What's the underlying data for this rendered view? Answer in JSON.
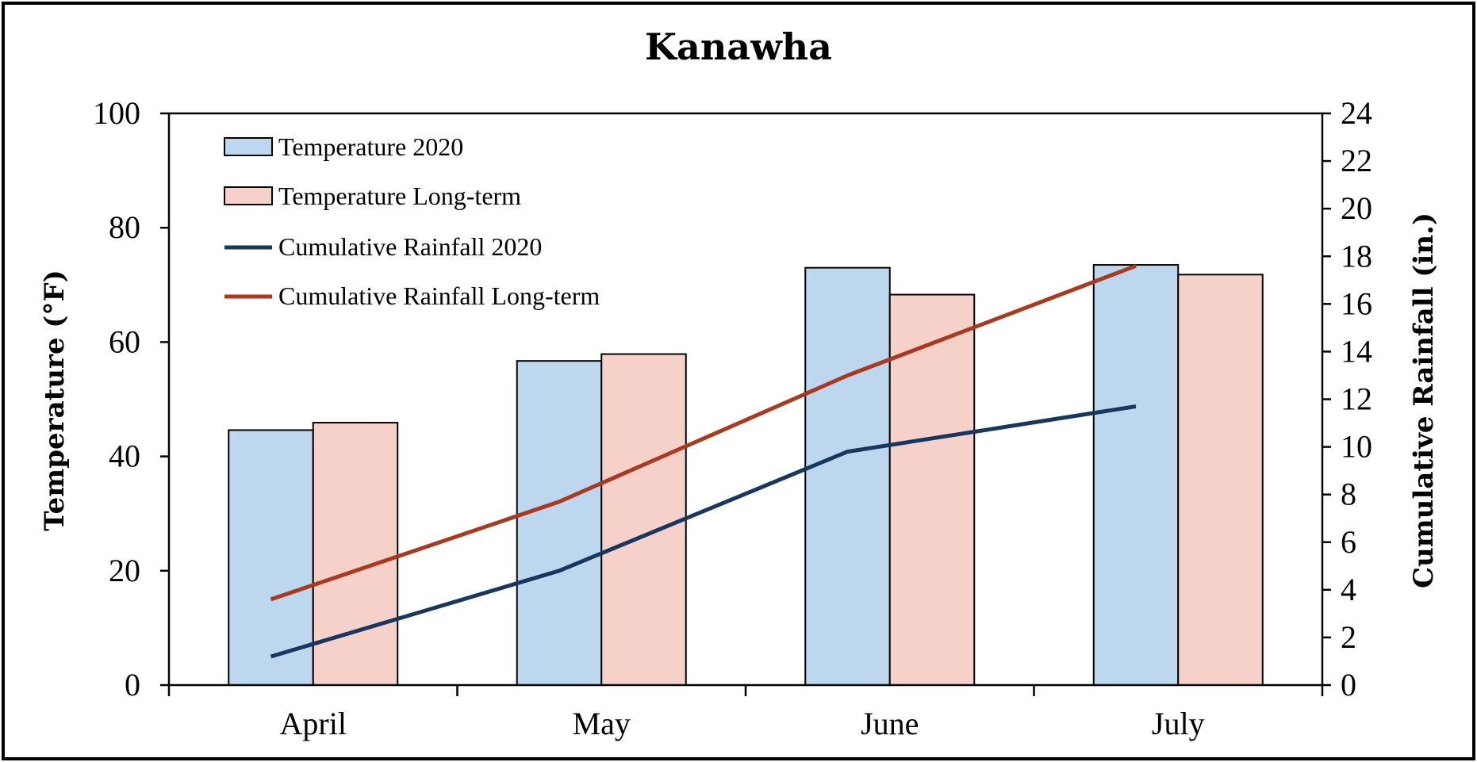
{
  "chart_data": {
    "type": "bar",
    "title": "Kanawha",
    "categories": [
      "April",
      "May",
      "June",
      "July"
    ],
    "xlabel": "",
    "ylabel": "Temperature (°F)",
    "ylim": [
      0,
      100
    ],
    "yticks": [
      "0",
      "20",
      "40",
      "60",
      "80",
      "100"
    ],
    "y2label": "Cumulative Rainfall (in.)",
    "y2lim": [
      0,
      24
    ],
    "y2ticks": [
      "0",
      "2",
      "4",
      "6",
      "8",
      "10",
      "12",
      "14",
      "16",
      "18",
      "20",
      "22",
      "24"
    ],
    "legend_position": "top-left",
    "grid": false,
    "series": [
      {
        "name": "Temperature 2020",
        "type": "bar",
        "axis": "left",
        "color": "#bdd7ee",
        "values": [
          44.6,
          56.7,
          73.0,
          73.5
        ]
      },
      {
        "name": "Temperature Long-term",
        "type": "bar",
        "axis": "left",
        "color": "#f6d1ca",
        "values": [
          45.9,
          57.9,
          68.3,
          71.8
        ]
      },
      {
        "name": "Cumulative Rainfall 2020",
        "type": "line",
        "axis": "right",
        "color": "#17375e",
        "values": [
          1.2,
          4.8,
          9.8,
          11.7
        ]
      },
      {
        "name": "Cumulative Rainfall Long-term",
        "type": "line",
        "axis": "right",
        "color": "#a9391f",
        "values": [
          3.6,
          7.7,
          13.0,
          17.6
        ]
      }
    ]
  }
}
